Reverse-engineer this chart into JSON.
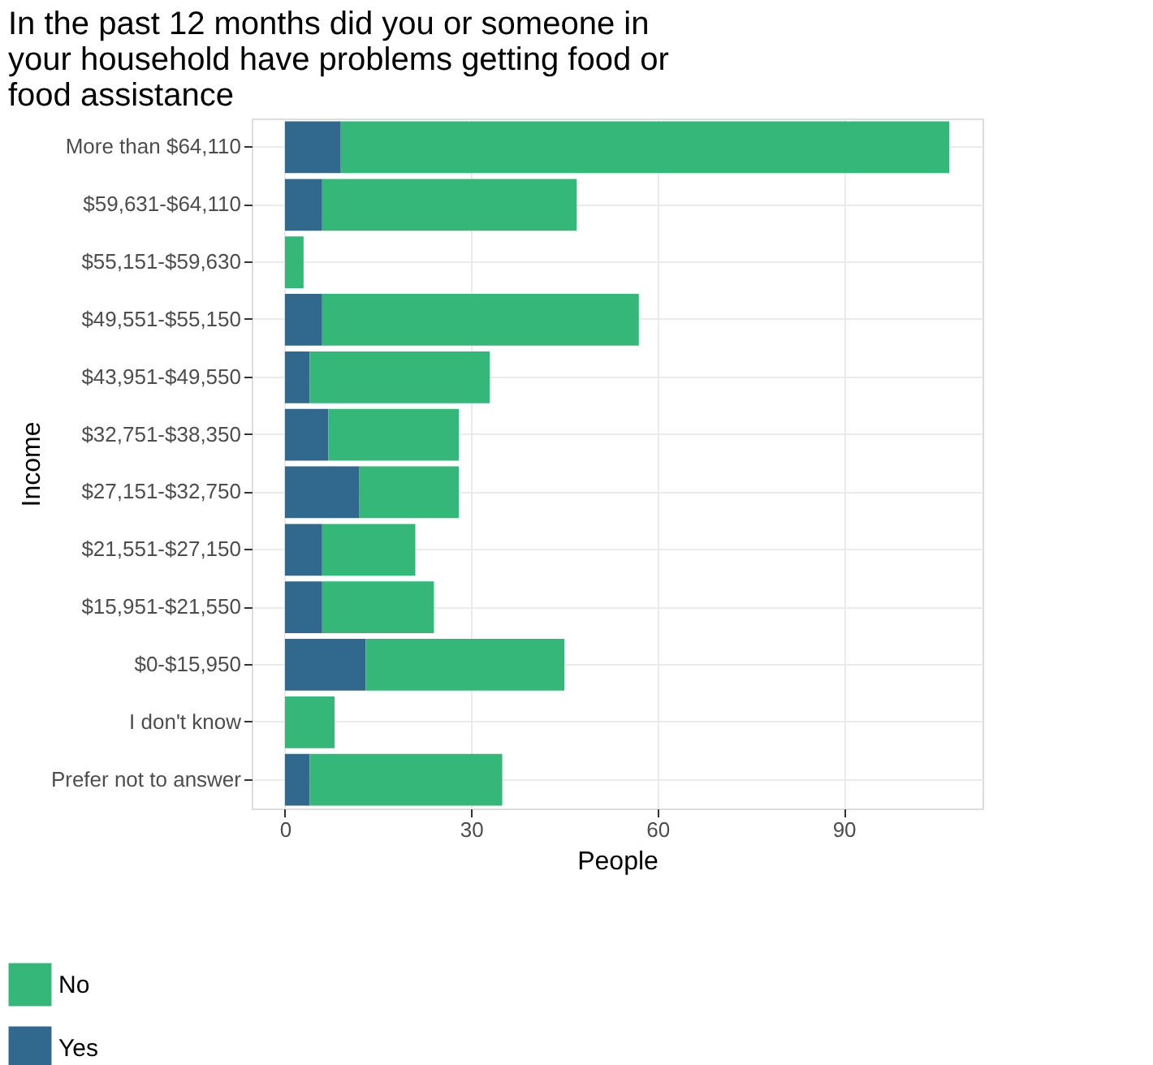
{
  "chart_data": {
    "type": "bar",
    "orientation": "horizontal",
    "stacked": true,
    "title": "In the past 12 months did you or someone in your household have problems getting food or food assistance",
    "xlabel": "People",
    "ylabel": "Income",
    "categories": [
      "More than $64,110",
      "$59,631-$64,110",
      "$55,151-$59,630",
      "$49,551-$55,150",
      "$43,951-$49,550",
      "$32,751-$38,350",
      "$27,151-$32,750",
      "$21,551-$27,150",
      "$15,951-$21,550",
      "$0-$15,950",
      "I don't know",
      "Prefer not to answer"
    ],
    "series": [
      {
        "name": "Yes",
        "color": "#31688e",
        "values": [
          9,
          6,
          0,
          6,
          4,
          7,
          12,
          6,
          6,
          13,
          0,
          4
        ]
      },
      {
        "name": "No",
        "color": "#35b779",
        "values": [
          98,
          41,
          3,
          51,
          29,
          21,
          16,
          15,
          18,
          32,
          8,
          31
        ]
      }
    ],
    "xlim": [
      -5.35,
      112.35
    ],
    "xticks": [
      0,
      30,
      60,
      90
    ],
    "grid": true,
    "legend": "bottom left"
  }
}
